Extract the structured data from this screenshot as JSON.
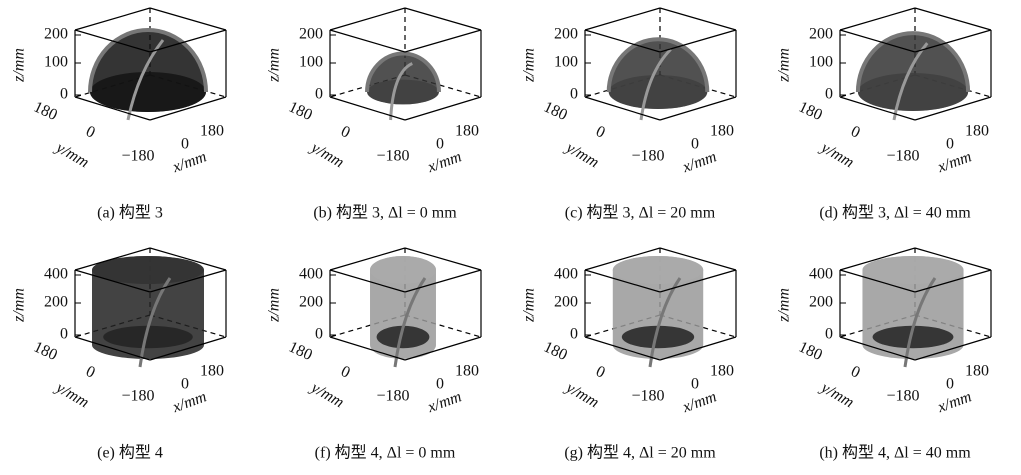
{
  "panels": [
    {
      "caption": "(a) 构型 3",
      "zlabel": "z/mm",
      "ylabel": "y/mm",
      "xlabel": "x/mm",
      "zticks": [
        "200",
        "100",
        "0"
      ],
      "yticks": [
        "180",
        "0"
      ],
      "xticks": [
        "−180",
        "0",
        "180"
      ]
    },
    {
      "caption": "(b) 构型 3, Δl = 0 mm",
      "zlabel": "z/mm",
      "ylabel": "y/mm",
      "xlabel": "x/mm",
      "zticks": [
        "200",
        "100",
        "0"
      ],
      "yticks": [
        "180",
        "0"
      ],
      "xticks": [
        "−180",
        "0",
        "180"
      ]
    },
    {
      "caption": "(c) 构型 3, Δl = 20 mm",
      "zlabel": "z/mm",
      "ylabel": "y/mm",
      "xlabel": "x/mm",
      "zticks": [
        "200",
        "100",
        "0"
      ],
      "yticks": [
        "180",
        "0"
      ],
      "xticks": [
        "−180",
        "0",
        "180"
      ]
    },
    {
      "caption": "(d) 构型 3, Δl = 40 mm",
      "zlabel": "z/mm",
      "ylabel": "y/mm",
      "xlabel": "x/mm",
      "zticks": [
        "200",
        "100",
        "0"
      ],
      "yticks": [
        "180",
        "0"
      ],
      "xticks": [
        "−180",
        "0",
        "180"
      ]
    },
    {
      "caption": "(e) 构型 4",
      "zlabel": "z/mm",
      "ylabel": "y/mm",
      "xlabel": "x/mm",
      "zticks": [
        "400",
        "200",
        "0"
      ],
      "yticks": [
        "180",
        "0"
      ],
      "xticks": [
        "−180",
        "0",
        "180"
      ]
    },
    {
      "caption": "(f) 构型 4, Δl = 0 mm",
      "zlabel": "z/mm",
      "ylabel": "y/mm",
      "xlabel": "x/mm",
      "zticks": [
        "400",
        "200",
        "0"
      ],
      "yticks": [
        "180",
        "0"
      ],
      "xticks": [
        "−180",
        "0",
        "180"
      ]
    },
    {
      "caption": "(g) 构型 4, Δl = 20 mm",
      "zlabel": "z/mm",
      "ylabel": "y/mm",
      "xlabel": "x/mm",
      "zticks": [
        "400",
        "200",
        "0"
      ],
      "yticks": [
        "180",
        "0"
      ],
      "xticks": [
        "−180",
        "0",
        "180"
      ]
    },
    {
      "caption": "(h) 构型 4, Δl = 40 mm",
      "zlabel": "z/mm",
      "ylabel": "y/mm",
      "xlabel": "x/mm",
      "zticks": [
        "400",
        "200",
        "0"
      ],
      "yticks": [
        "180",
        "0"
      ],
      "xticks": [
        "−180",
        "0",
        "180"
      ]
    }
  ]
}
